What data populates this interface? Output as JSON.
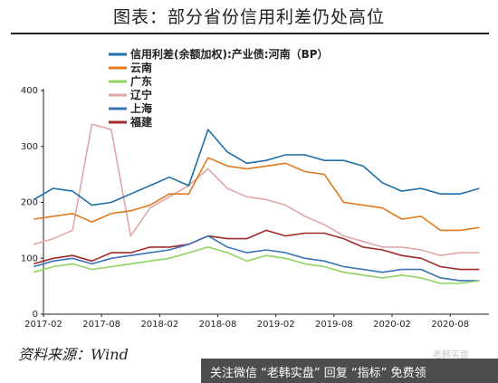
{
  "header": {
    "title": "图表：部分省份信用利差仍处高位"
  },
  "footer": {
    "source": "资料来源：Wind",
    "caption": "关注微信 “老韩实盘” 回复 “指标” 免费领",
    "watermark": "老韩实盘"
  },
  "chart_data": {
    "type": "line",
    "title": "图表：部分省份信用利差仍处高位",
    "xlabel": "",
    "ylabel": "",
    "ylim": [
      0,
      400
    ],
    "yticks": [
      "0",
      "100",
      "200",
      "300",
      "400"
    ],
    "xticks": [
      "2017-02",
      "2017-08",
      "2018-02",
      "2018-08",
      "2019-02",
      "2019-08",
      "2020-02",
      "2020-08"
    ],
    "x": [
      "2017-01",
      "2017-03",
      "2017-05",
      "2017-07",
      "2017-09",
      "2017-11",
      "2018-01",
      "2018-03",
      "2018-05",
      "2018-07",
      "2018-09",
      "2018-11",
      "2019-01",
      "2019-03",
      "2019-05",
      "2019-07",
      "2019-09",
      "2019-11",
      "2020-01",
      "2020-03",
      "2020-05",
      "2020-07",
      "2020-09",
      "2020-11"
    ],
    "legend_position": "top-left",
    "grid": false,
    "series": [
      {
        "name": "信用利差(余额加权):产业债:河南（BP）",
        "color": "#1f6fa8",
        "values": [
          205,
          225,
          220,
          195,
          200,
          215,
          230,
          245,
          230,
          330,
          290,
          270,
          275,
          285,
          285,
          275,
          275,
          265,
          235,
          220,
          225,
          215,
          215,
          225
        ]
      },
      {
        "name": "云南",
        "color": "#e07a1f",
        "values": [
          170,
          175,
          180,
          165,
          180,
          185,
          195,
          215,
          215,
          280,
          265,
          260,
          265,
          270,
          255,
          250,
          200,
          195,
          190,
          170,
          175,
          150,
          150,
          155
        ]
      },
      {
        "name": "广东",
        "color": "#8fd460",
        "values": [
          75,
          85,
          90,
          80,
          85,
          90,
          95,
          100,
          110,
          120,
          110,
          95,
          105,
          100,
          90,
          85,
          75,
          70,
          65,
          70,
          65,
          55,
          55,
          60
        ]
      },
      {
        "name": "辽宁",
        "color": "#e0a8a8",
        "values": [
          125,
          135,
          150,
          340,
          330,
          140,
          190,
          210,
          230,
          260,
          225,
          210,
          205,
          195,
          175,
          160,
          140,
          130,
          120,
          120,
          115,
          105,
          110,
          110
        ]
      },
      {
        "name": "上海",
        "color": "#3b73b8",
        "values": [
          85,
          95,
          100,
          90,
          100,
          105,
          110,
          115,
          125,
          140,
          120,
          110,
          115,
          110,
          100,
          95,
          85,
          80,
          75,
          80,
          80,
          65,
          60,
          60
        ]
      },
      {
        "name": "福建",
        "color": "#a02a2a",
        "values": [
          90,
          100,
          105,
          95,
          110,
          110,
          120,
          120,
          125,
          140,
          135,
          135,
          150,
          140,
          145,
          145,
          135,
          120,
          115,
          105,
          100,
          85,
          80,
          80
        ]
      }
    ]
  }
}
